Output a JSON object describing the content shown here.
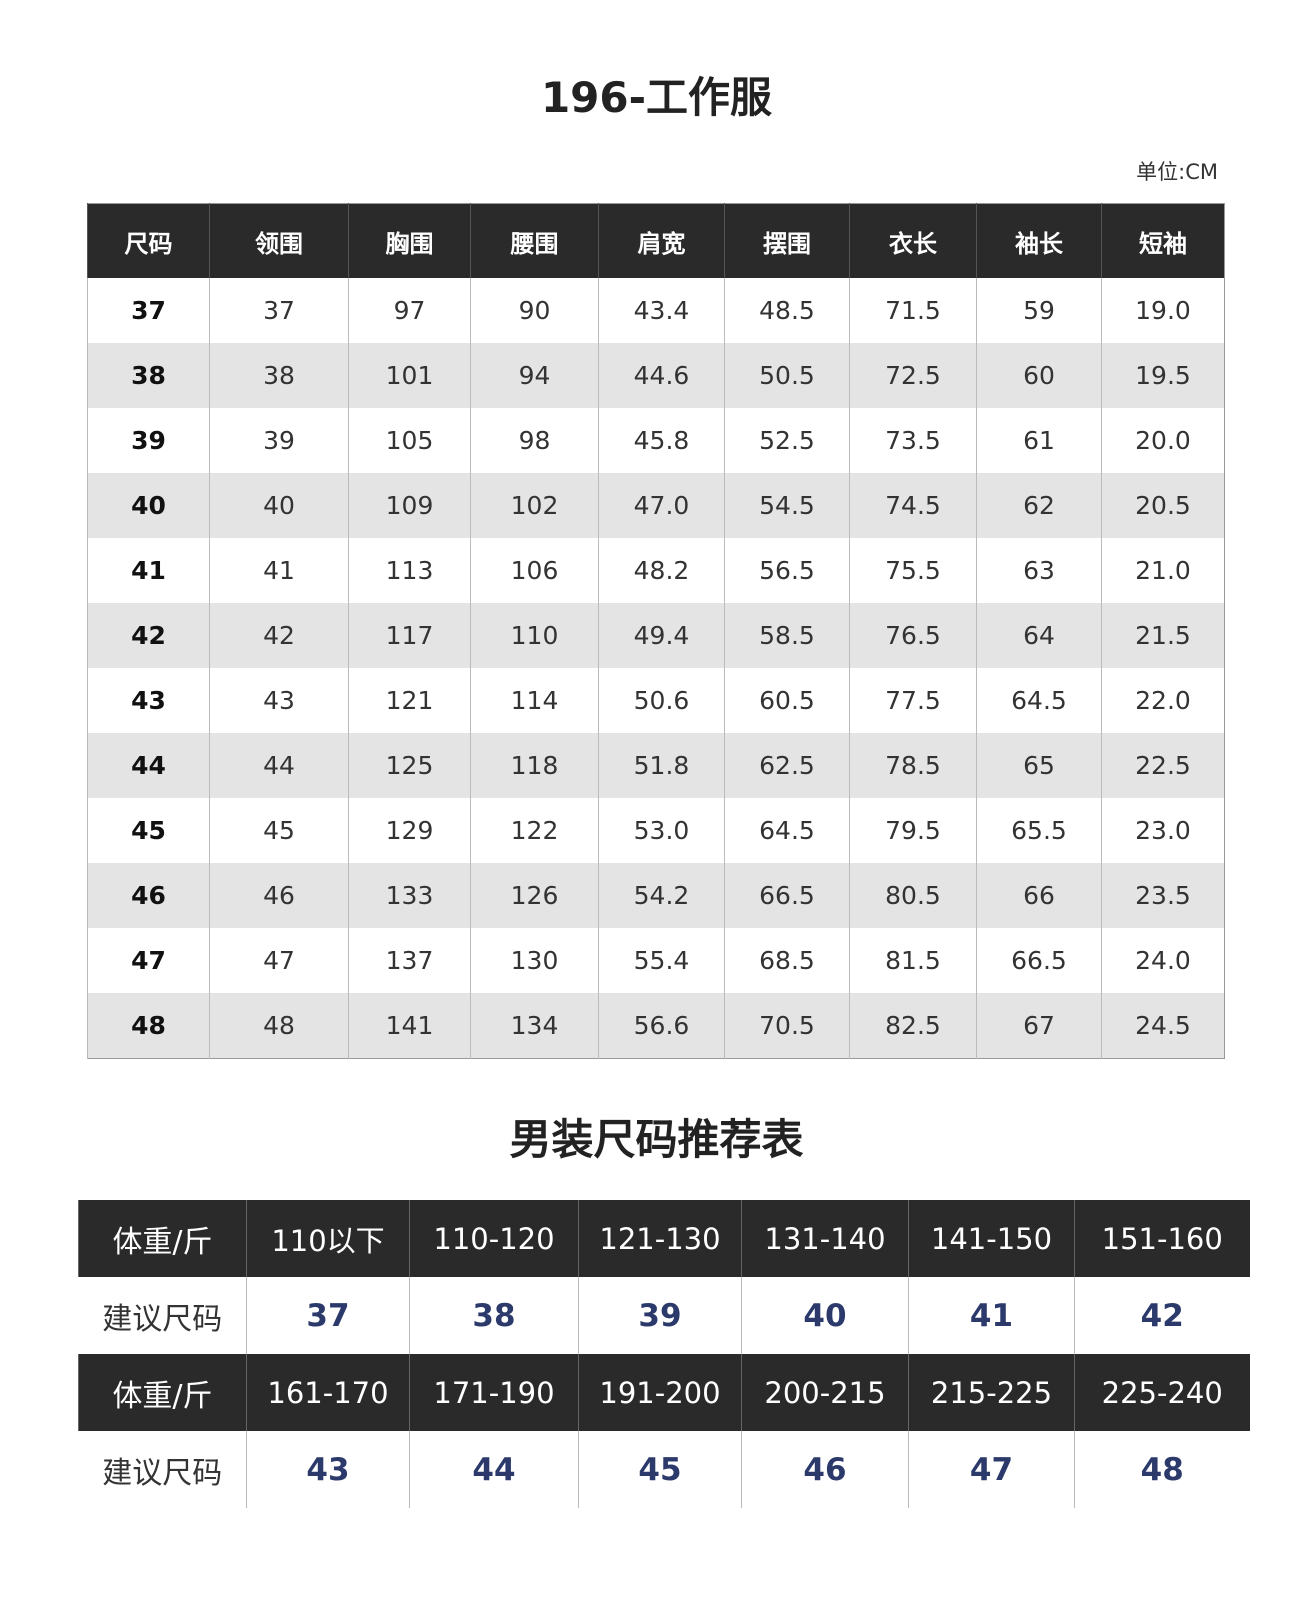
{
  "size_chart": {
    "title": "196-工作服",
    "unit": "单位:CM",
    "headers": [
      "尺码",
      "领围",
      "胸围",
      "腰围",
      "肩宽",
      "摆围",
      "衣长",
      "袖长",
      "短袖"
    ],
    "rows": [
      [
        "37",
        "37",
        "97",
        "90",
        "43.4",
        "48.5",
        "71.5",
        "59",
        "19.0"
      ],
      [
        "38",
        "38",
        "101",
        "94",
        "44.6",
        "50.5",
        "72.5",
        "60",
        "19.5"
      ],
      [
        "39",
        "39",
        "105",
        "98",
        "45.8",
        "52.5",
        "73.5",
        "61",
        "20.0"
      ],
      [
        "40",
        "40",
        "109",
        "102",
        "47.0",
        "54.5",
        "74.5",
        "62",
        "20.5"
      ],
      [
        "41",
        "41",
        "113",
        "106",
        "48.2",
        "56.5",
        "75.5",
        "63",
        "21.0"
      ],
      [
        "42",
        "42",
        "117",
        "110",
        "49.4",
        "58.5",
        "76.5",
        "64",
        "21.5"
      ],
      [
        "43",
        "43",
        "121",
        "114",
        "50.6",
        "60.5",
        "77.5",
        "64.5",
        "22.0"
      ],
      [
        "44",
        "44",
        "125",
        "118",
        "51.8",
        "62.5",
        "78.5",
        "65",
        "22.5"
      ],
      [
        "45",
        "45",
        "129",
        "122",
        "53.0",
        "64.5",
        "79.5",
        "65.5",
        "23.0"
      ],
      [
        "46",
        "46",
        "133",
        "126",
        "54.2",
        "66.5",
        "80.5",
        "66",
        "23.5"
      ],
      [
        "47",
        "47",
        "137",
        "130",
        "55.4",
        "68.5",
        "81.5",
        "66.5",
        "24.0"
      ],
      [
        "48",
        "48",
        "141",
        "134",
        "56.6",
        "70.5",
        "82.5",
        "67",
        "24.5"
      ]
    ]
  },
  "recommendation": {
    "title": "男装尺码推荐表",
    "weight_label": "体重/斤",
    "size_label": "建议尺码",
    "groups": [
      {
        "weights": [
          "110以下",
          "110-120",
          "121-130",
          "131-140",
          "141-150",
          "151-160"
        ],
        "sizes": [
          "37",
          "38",
          "39",
          "40",
          "41",
          "42"
        ]
      },
      {
        "weights": [
          "161-170",
          "171-190",
          "191-200",
          "200-215",
          "215-225",
          "225-240"
        ],
        "sizes": [
          "43",
          "44",
          "45",
          "46",
          "47",
          "48"
        ]
      }
    ]
  },
  "colors": {
    "header_bg": "#2a2a2a",
    "alt_row": "#e4e4e4",
    "size_value": "#2b3a6b"
  }
}
